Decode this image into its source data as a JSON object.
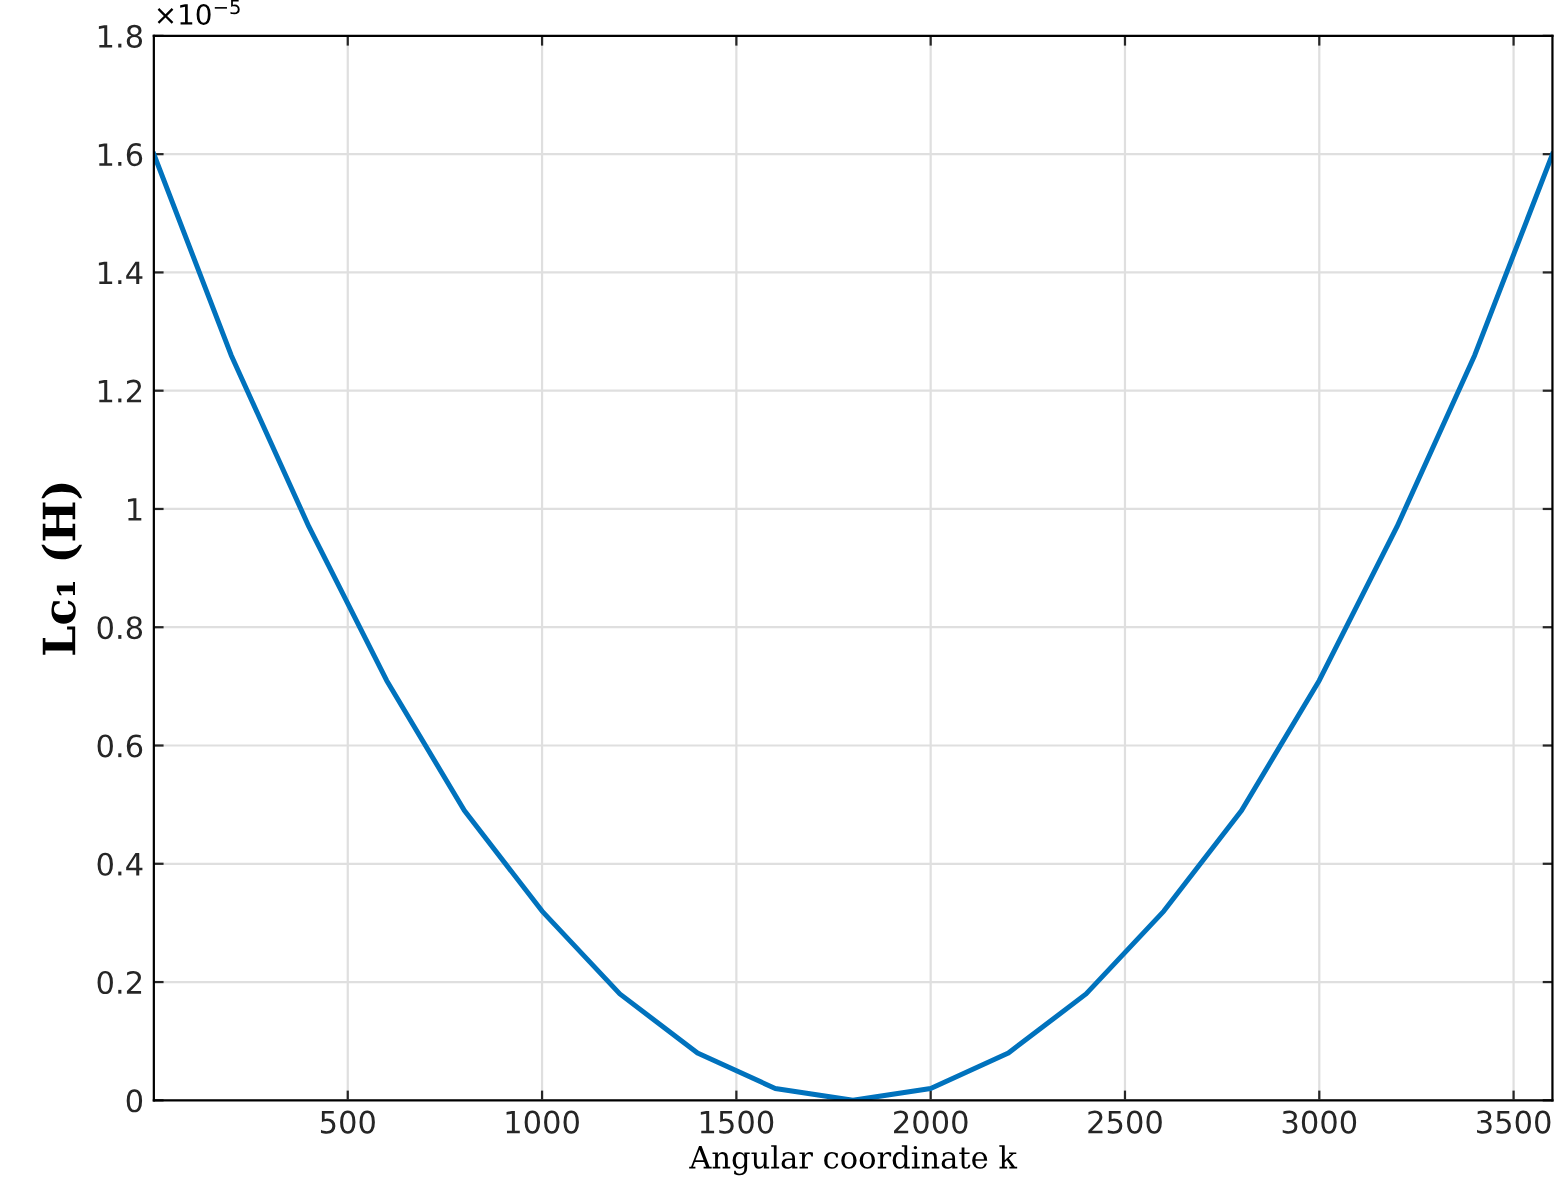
{
  "chart_data": {
    "type": "line",
    "xlabel": "Angular coordinate k",
    "ylabel": "Lc₁ (H)",
    "annotations": [
      "×10$^{−5}$"
    ],
    "x": [
      1,
      200,
      400,
      600,
      800,
      1000,
      1200,
      1400,
      1600,
      1800,
      2000,
      2200,
      2400,
      2600,
      2800,
      3000,
      3200,
      3400,
      3600
    ],
    "series": [
      {
        "color": "#0072bd",
        "values": [
          1.6,
          1.26,
          0.97,
          0.71,
          0.49,
          0.32,
          0.18,
          0.08,
          0.02,
          0,
          0.02,
          0.08,
          0.18,
          0.32,
          0.49,
          0.71,
          0.97,
          1.26,
          1.6
        ]
      }
    ],
    "xlim": [
      1,
      3600
    ],
    "xticks": [
      500,
      1000,
      1500,
      2000,
      2500,
      3000,
      3500
    ],
    "ylim": [
      0,
      1.8
    ],
    "yticks": [
      0,
      0.2,
      0.4,
      0.6,
      0.8,
      1,
      1.2,
      1.4,
      1.6,
      1.8
    ],
    "grid": true,
    "marker": "none",
    "line_style": "solid"
  }
}
